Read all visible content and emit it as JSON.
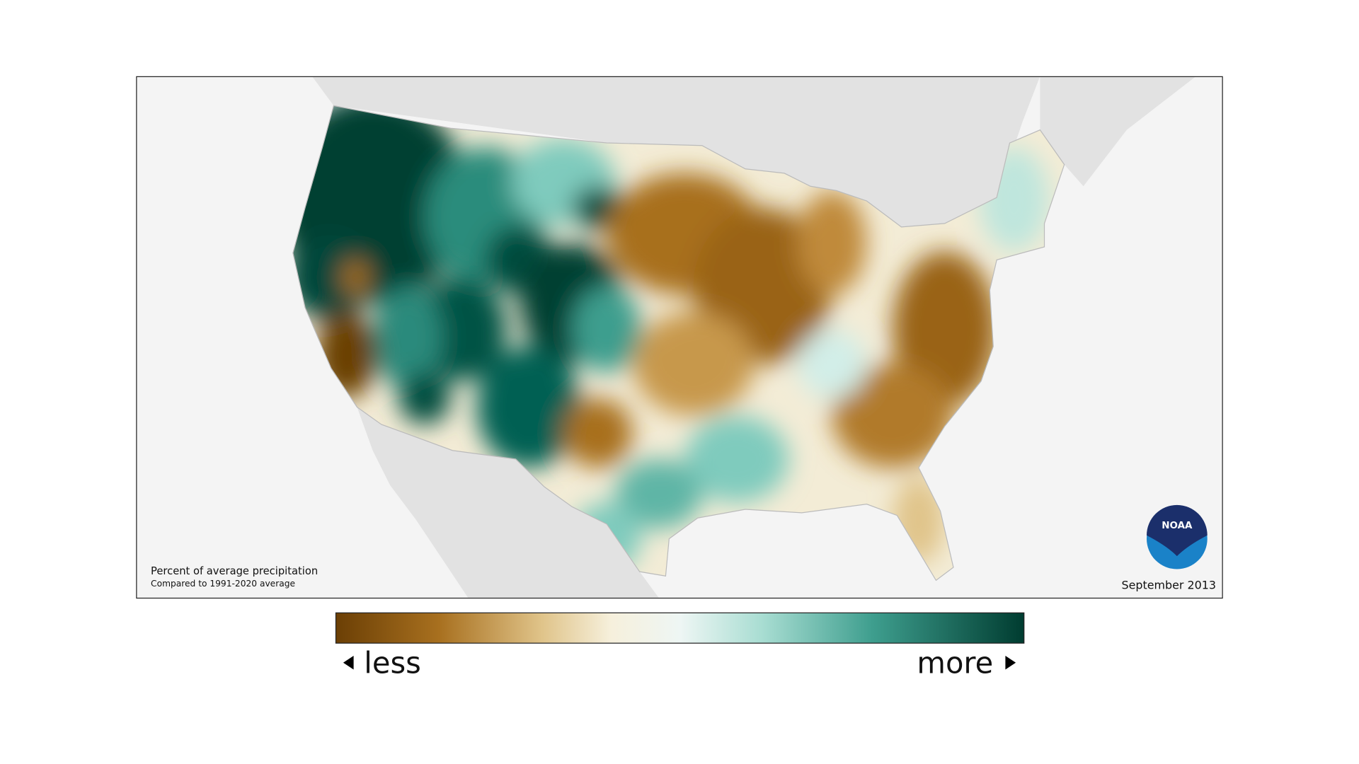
{
  "map": {
    "note_title": "Percent of average precipitation",
    "note_subtitle": "Compared to 1991-2020 average",
    "date": "September 2013",
    "logo": "NOAA"
  },
  "legend": {
    "low_label": "less",
    "high_label": "more"
  }
}
